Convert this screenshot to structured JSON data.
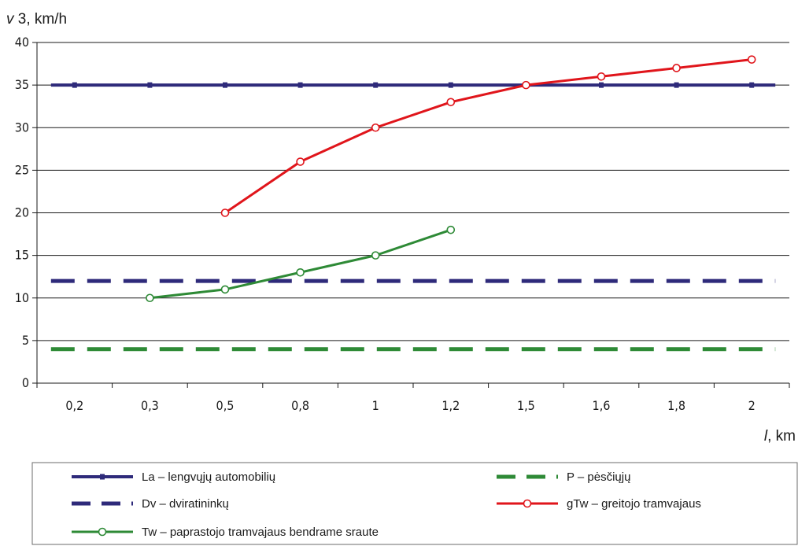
{
  "chart_data": {
    "type": "line",
    "categories": [
      "0,2",
      "0,3",
      "0,5",
      "0,8",
      "1",
      "1,2",
      "1,5",
      "1,6",
      "1,8",
      "2"
    ],
    "ylabel_var": "v",
    "ylabel_rest": " 3, km/h",
    "xlabel_var": "l",
    "xlabel_rest": ", km",
    "ylim": [
      0,
      40
    ],
    "yticks": [
      0,
      5,
      10,
      15,
      20,
      25,
      30,
      35,
      40
    ],
    "grid": "horizontal",
    "legend_position": "bottom",
    "series": [
      {
        "name": "La – lengvųjų automobilių",
        "color": "#2e2a7a",
        "style": "solid-marked",
        "values": [
          35,
          35,
          35,
          35,
          35,
          35,
          35,
          35,
          35,
          35
        ]
      },
      {
        "name": "P – pėsčiųjų",
        "color": "#2e8a36",
        "style": "dashed",
        "values": [
          4,
          4,
          4,
          4,
          4,
          4,
          4,
          4,
          4,
          4
        ]
      },
      {
        "name": "Dv – dviratininkų",
        "color": "#2e2a7a",
        "style": "dashed",
        "values": [
          12,
          12,
          12,
          12,
          12,
          12,
          12,
          12,
          12,
          12
        ]
      },
      {
        "name": "gTw – greitojo tramvajaus",
        "color": "#e0151b",
        "style": "circles",
        "values": [
          null,
          null,
          20,
          26,
          30,
          33,
          35,
          36,
          37,
          38
        ]
      },
      {
        "name": "Tw – paprastojo tramvajaus bendrame sraute",
        "color": "#2e8a36",
        "style": "circles",
        "values": [
          null,
          10,
          11,
          13,
          15,
          18,
          null,
          null,
          null,
          null
        ]
      }
    ]
  }
}
